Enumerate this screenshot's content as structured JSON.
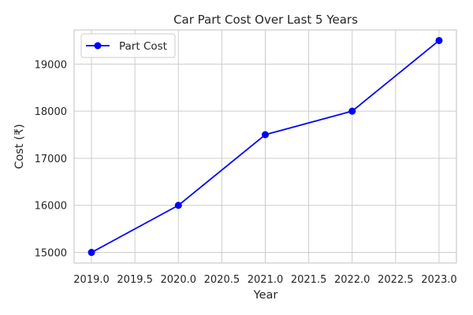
{
  "chart_data": {
    "type": "line",
    "title": "Car Part Cost Over Last 5 Years",
    "xlabel": "Year",
    "ylabel": "Cost (₹)",
    "x": [
      2019,
      2020,
      2021,
      2022,
      2023
    ],
    "series": [
      {
        "name": "Part Cost",
        "values": [
          15000,
          16000,
          17500,
          18000,
          19500
        ]
      }
    ],
    "xlim": [
      2018.8,
      2023.2
    ],
    "ylim": [
      14775,
      19725
    ],
    "xticks": [
      2019.0,
      2019.5,
      2020.0,
      2020.5,
      2021.0,
      2021.5,
      2022.0,
      2022.5,
      2023.0
    ],
    "yticks": [
      15000,
      16000,
      17000,
      18000,
      19000
    ],
    "xtick_labels": [
      "2019.0",
      "2019.5",
      "2020.0",
      "2020.5",
      "2021.0",
      "2021.5",
      "2022.0",
      "2022.5",
      "2023.0"
    ],
    "ytick_labels": [
      "15000",
      "16000",
      "17000",
      "18000",
      "19000"
    ],
    "grid": true,
    "legend_position": "top-left",
    "line_color": "#0000ff",
    "marker": "circle"
  }
}
